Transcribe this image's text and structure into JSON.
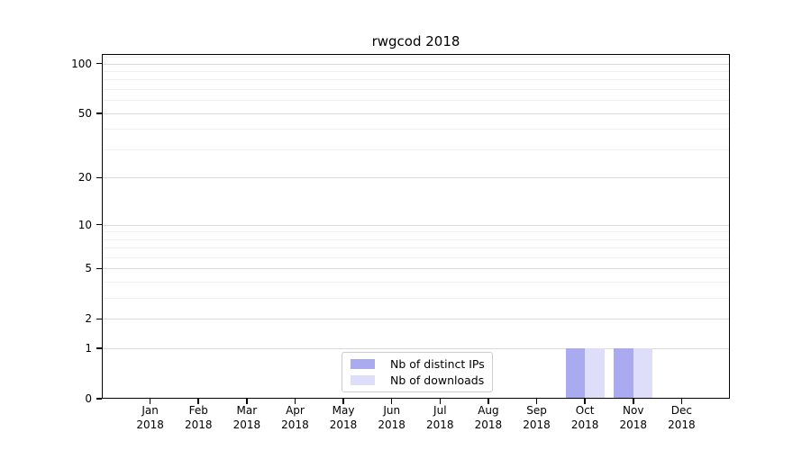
{
  "title": "rwgcod 2018",
  "chart_data": {
    "type": "bar",
    "title": "rwgcod 2018",
    "categories": [
      "Jan",
      "Feb",
      "Mar",
      "Apr",
      "May",
      "Jun",
      "Jul",
      "Aug",
      "Sep",
      "Oct",
      "Nov",
      "Dec"
    ],
    "x_sub_label": "2018",
    "series": [
      {
        "name": "Nb of distinct IPs",
        "color": "#aaaaf0",
        "values": [
          0,
          0,
          0,
          0,
          0,
          0,
          0,
          0,
          0,
          1,
          1,
          0
        ]
      },
      {
        "name": "Nb of downloads",
        "color": "#dedefa",
        "values": [
          0,
          0,
          0,
          0,
          0,
          0,
          0,
          0,
          0,
          1,
          1,
          0
        ]
      }
    ],
    "yscale": "log1p",
    "ylim": [
      0,
      113
    ],
    "xlim": [
      -1,
      12
    ],
    "y_major_ticks": [
      0,
      1,
      2,
      5,
      10,
      20,
      50,
      100
    ],
    "y_minor_ticks": [
      3,
      4,
      6,
      7,
      8,
      9,
      30,
      40,
      60,
      70,
      80,
      90,
      110
    ],
    "bar_width": 0.4,
    "grid": true,
    "legend_position": "lower center",
    "colors": {
      "axis": "#000000",
      "grid_major": "#d9d9d9",
      "grid_minor": "#f0f0f0",
      "background": "#ffffff",
      "legend_border": "#cccccc"
    }
  }
}
